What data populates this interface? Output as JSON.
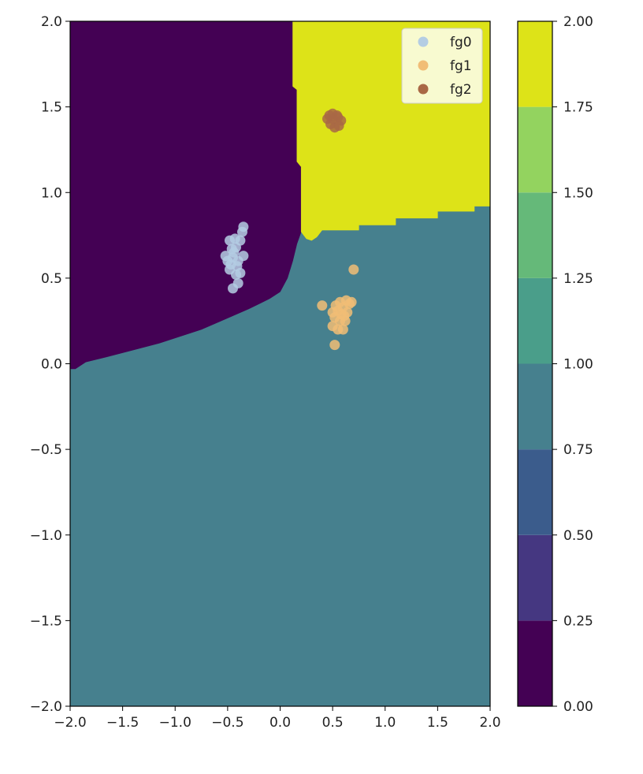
{
  "chart_data": [
    {
      "type": "contour",
      "xlim": [
        -2.0,
        2.0
      ],
      "ylim": [
        -2.0,
        2.0
      ],
      "x_ticks": [
        -2.0,
        -1.5,
        -1.0,
        -0.5,
        0.0,
        0.5,
        1.0,
        1.5,
        2.0
      ],
      "x_tick_labels": [
        "−2.0",
        "−1.5",
        "−1.0",
        "−0.5",
        "0.0",
        "0.5",
        "1.0",
        "1.5",
        "2.0"
      ],
      "y_ticks": [
        -2.0,
        -1.5,
        -1.0,
        -0.5,
        0.0,
        0.5,
        1.0,
        1.5,
        2.0
      ],
      "y_tick_labels": [
        "−2.0",
        "−1.5",
        "−1.0",
        "−0.5",
        "0.0",
        "0.5",
        "1.0",
        "1.5",
        "2.0"
      ],
      "regions": [
        {
          "level": 0.0,
          "color": "#440154",
          "boundary": [
            [
              -2.0,
              2.0
            ],
            [
              0.12,
              2.0
            ],
            [
              0.12,
              1.62
            ],
            [
              0.16,
              1.6
            ],
            [
              0.16,
              1.18
            ],
            [
              0.2,
              1.15
            ],
            [
              0.2,
              0.77
            ],
            [
              0.16,
              0.7
            ],
            [
              0.12,
              0.6
            ],
            [
              0.07,
              0.5
            ],
            [
              0.0,
              0.42
            ],
            [
              -0.1,
              0.38
            ],
            [
              -0.2,
              0.35
            ],
            [
              -0.3,
              0.32
            ],
            [
              -0.45,
              0.28
            ],
            [
              -0.6,
              0.24
            ],
            [
              -0.75,
              0.2
            ],
            [
              -0.95,
              0.16
            ],
            [
              -1.15,
              0.12
            ],
            [
              -1.4,
              0.08
            ],
            [
              -1.65,
              0.04
            ],
            [
              -1.85,
              0.01
            ],
            [
              -1.95,
              -0.03
            ],
            [
              -2.0,
              -0.03
            ]
          ]
        },
        {
          "level": 2.0,
          "color": "#dde318",
          "boundary": [
            [
              0.12,
              2.0
            ],
            [
              2.0,
              2.0
            ],
            [
              2.0,
              0.92
            ],
            [
              1.85,
              0.92
            ],
            [
              1.85,
              0.89
            ],
            [
              1.5,
              0.89
            ],
            [
              1.5,
              0.85
            ],
            [
              1.1,
              0.85
            ],
            [
              1.1,
              0.81
            ],
            [
              0.75,
              0.81
            ],
            [
              0.75,
              0.78
            ],
            [
              0.4,
              0.78
            ],
            [
              0.35,
              0.74
            ],
            [
              0.3,
              0.72
            ],
            [
              0.25,
              0.73
            ],
            [
              0.2,
              0.77
            ],
            [
              0.2,
              1.15
            ],
            [
              0.16,
              1.18
            ],
            [
              0.16,
              1.6
            ],
            [
              0.12,
              1.62
            ]
          ]
        }
      ],
      "background_region": {
        "level": 1.0,
        "color": "#46808e"
      },
      "series": [
        {
          "name": "fg0",
          "color": "#b4cde3",
          "points": [
            [
              -0.45,
              0.44
            ],
            [
              -0.4,
              0.47
            ],
            [
              -0.48,
              0.55
            ],
            [
              -0.42,
              0.52
            ],
            [
              -0.38,
              0.53
            ],
            [
              -0.5,
              0.6
            ],
            [
              -0.45,
              0.62
            ],
            [
              -0.4,
              0.6
            ],
            [
              -0.35,
              0.63
            ],
            [
              -0.52,
              0.63
            ],
            [
              -0.46,
              0.67
            ],
            [
              -0.42,
              0.68
            ],
            [
              -0.48,
              0.72
            ],
            [
              -0.43,
              0.73
            ],
            [
              -0.38,
              0.72
            ],
            [
              -0.36,
              0.77
            ],
            [
              -0.35,
              0.8
            ],
            [
              -0.47,
              0.58
            ],
            [
              -0.41,
              0.57
            ],
            [
              -0.44,
              0.65
            ]
          ]
        },
        {
          "name": "fg1",
          "color": "#f1bd76",
          "points": [
            [
              0.4,
              0.34
            ],
            [
              0.7,
              0.55
            ],
            [
              0.52,
              0.11
            ],
            [
              0.55,
              0.2
            ],
            [
              0.6,
              0.2
            ],
            [
              0.5,
              0.22
            ],
            [
              0.57,
              0.25
            ],
            [
              0.62,
              0.25
            ],
            [
              0.52,
              0.27
            ],
            [
              0.58,
              0.29
            ],
            [
              0.64,
              0.3
            ],
            [
              0.55,
              0.31
            ],
            [
              0.6,
              0.33
            ],
            [
              0.66,
              0.35
            ],
            [
              0.5,
              0.3
            ],
            [
              0.63,
              0.37
            ],
            [
              0.68,
              0.36
            ],
            [
              0.57,
              0.36
            ],
            [
              0.53,
              0.34
            ],
            [
              0.61,
              0.28
            ]
          ]
        },
        {
          "name": "fg2",
          "color": "#a96845",
          "points": [
            [
              0.45,
              1.43
            ],
            [
              0.5,
              1.46
            ],
            [
              0.54,
              1.45
            ],
            [
              0.58,
              1.42
            ],
            [
              0.48,
              1.4
            ],
            [
              0.52,
              1.38
            ],
            [
              0.56,
              1.39
            ],
            [
              0.5,
              1.43
            ],
            [
              0.55,
              1.44
            ],
            [
              0.47,
              1.45
            ]
          ]
        }
      ],
      "legend": {
        "placement": "upper right",
        "entries": [
          "fg0",
          "fg1",
          "fg2"
        ]
      },
      "grid": false
    },
    {
      "type": "colorbar",
      "lim": [
        0.0,
        2.0
      ],
      "ticks": [
        0.0,
        0.25,
        0.5,
        0.75,
        1.0,
        1.25,
        1.5,
        1.75,
        2.0
      ],
      "tick_labels": [
        "0.00",
        "0.25",
        "0.50",
        "0.75",
        "1.00",
        "1.25",
        "1.50",
        "1.75",
        "2.00"
      ],
      "band_colors": [
        "#440154",
        "#453781",
        "#3b5c8c",
        "#46808e",
        "#4a9e8a",
        "#65b979",
        "#93d35f",
        "#dde318"
      ]
    }
  ]
}
